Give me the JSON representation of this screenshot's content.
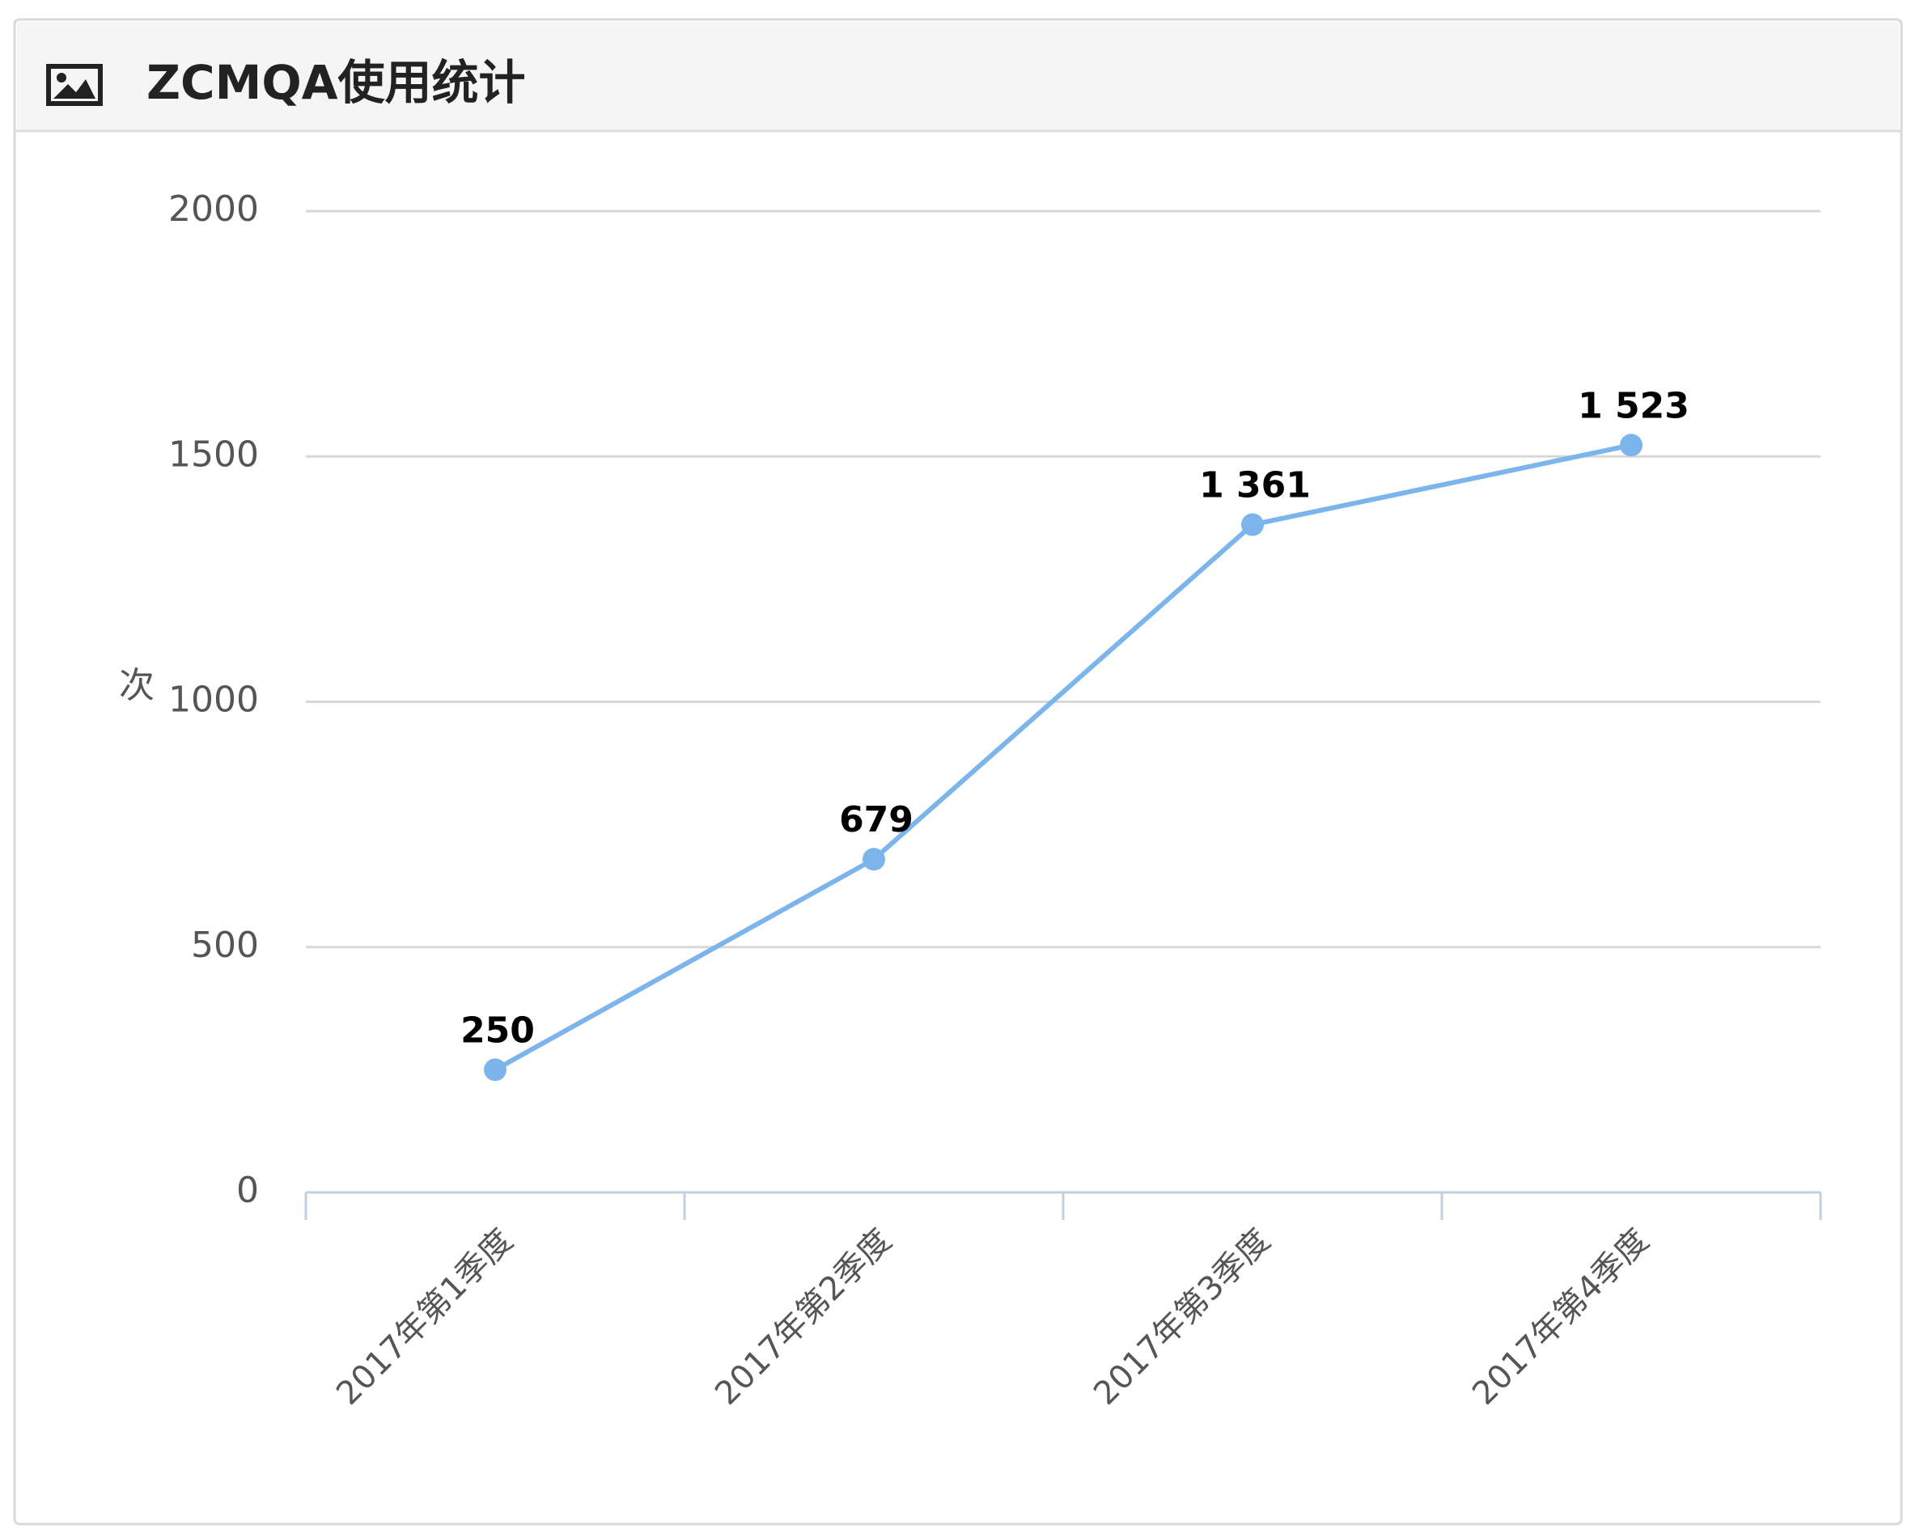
{
  "chart_data": {
    "type": "line",
    "title": "ZCMQA使用统计",
    "y_label": "次",
    "categories": [
      "2017年第1季度",
      "2017年第2季度",
      "2017年第3季度",
      "2017年第4季度"
    ],
    "values": [
      250,
      679,
      1361,
      1523
    ],
    "value_labels": [
      "250",
      "679",
      "1 361",
      "1 523"
    ],
    "color": "#7cb5ec",
    "ylim": [
      0,
      2000
    ],
    "yticks": [
      0,
      500,
      1000,
      1500,
      2000
    ],
    "grid": true
  }
}
